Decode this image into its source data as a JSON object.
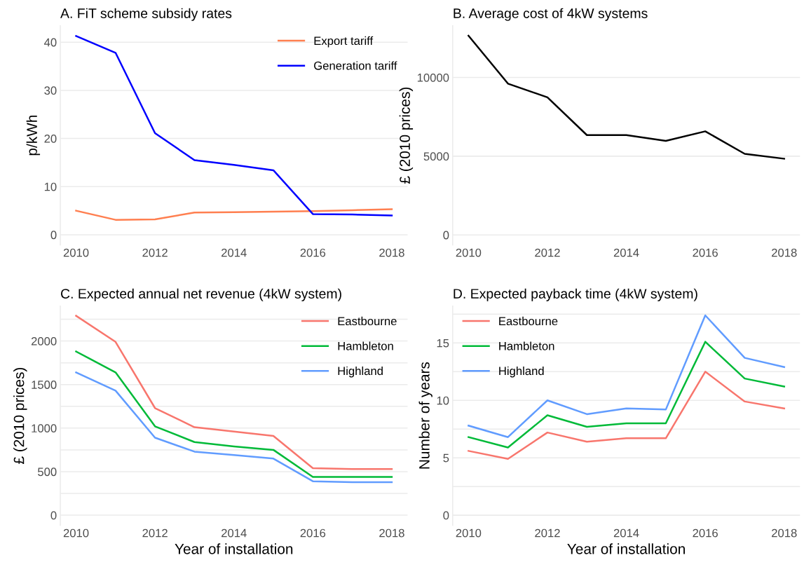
{
  "chart_data": [
    {
      "type": "line",
      "title": "A. FiT scheme subsidy rates",
      "ylabel": "p/kWh",
      "x": [
        2010,
        2011,
        2012,
        2013,
        2014,
        2015,
        2016,
        2017,
        2018
      ],
      "series": [
        {
          "name": "Export tariff",
          "color": "#ff7f50",
          "values": [
            5.0,
            3.1,
            3.2,
            4.6,
            4.7,
            4.8,
            4.9,
            5.1,
            5.3
          ]
        },
        {
          "name": "Generation tariff",
          "color": "#0000ff",
          "values": [
            41.3,
            37.8,
            21.1,
            15.5,
            14.5,
            13.4,
            4.3,
            4.2,
            4.0
          ]
        }
      ],
      "xlim": [
        2009.6,
        2018.4
      ],
      "xticks": [
        2010,
        2012,
        2014,
        2016,
        2018
      ],
      "ylim": [
        -2.1,
        43.4
      ],
      "yticks": [
        0,
        10,
        20,
        30,
        40
      ],
      "grid": "y",
      "legend": "top right"
    },
    {
      "type": "line",
      "title": "B. Average cost of 4kW systems",
      "ylabel": "£ (2010 prices)",
      "x": [
        2010,
        2011,
        2012,
        2013,
        2014,
        2015,
        2016,
        2017,
        2018
      ],
      "series": [
        {
          "color": "#000000",
          "values": [
            12650,
            9610,
            8740,
            6340,
            6340,
            5970,
            6580,
            5150,
            4840
          ]
        }
      ],
      "xlim": [
        2009.6,
        2018.4
      ],
      "xticks": [
        2010,
        2012,
        2014,
        2016,
        2018
      ],
      "ylim": [
        -630,
        13280
      ],
      "yticks": [
        0,
        5000,
        10000
      ],
      "grid": "y"
    },
    {
      "type": "line",
      "title": "C. Expected annual net revenue (4kW system)",
      "xlabel": "Year of installation",
      "ylabel": "£ (2010 prices)",
      "x": [
        2010,
        2011,
        2012,
        2013,
        2014,
        2015,
        2016,
        2017,
        2018
      ],
      "series": [
        {
          "name": "Eastbourne",
          "color": "#f8766d",
          "values": [
            2290,
            1990,
            1230,
            1010,
            960,
            910,
            540,
            530,
            530
          ]
        },
        {
          "name": "Hambleton",
          "color": "#00ba38",
          "values": [
            1880,
            1640,
            1020,
            840,
            790,
            750,
            440,
            440,
            440
          ]
        },
        {
          "name": "Highland",
          "color": "#619cff",
          "values": [
            1640,
            1430,
            890,
            730,
            690,
            650,
            390,
            380,
            380
          ]
        }
      ],
      "xlim": [
        2009.6,
        2018.4
      ],
      "xticks": [
        2010,
        2012,
        2014,
        2016,
        2018
      ],
      "ylim": [
        -115,
        2400
      ],
      "yticks": [
        0,
        {
          "value": 250,
          "label": null
        },
        500,
        {
          "value": 750,
          "label": null
        },
        1000,
        {
          "value": 1250,
          "label": null
        },
        1500,
        {
          "value": 1750,
          "label": null
        },
        2000,
        {
          "value": 2250,
          "label": null
        }
      ],
      "grid": "y",
      "legend": "top right"
    },
    {
      "type": "line",
      "title": "D. Expected payback time (4kW system)",
      "xlabel": "Year of installation",
      "ylabel": "Number of years",
      "x": [
        2010,
        2011,
        2012,
        2013,
        2014,
        2015,
        2016,
        2017,
        2018
      ],
      "series": [
        {
          "name": "Eastbourne",
          "color": "#f8766d",
          "values": [
            5.6,
            4.9,
            7.2,
            6.4,
            6.7,
            6.7,
            12.5,
            9.9,
            9.3
          ]
        },
        {
          "name": "Hambleton",
          "color": "#00ba38",
          "values": [
            6.8,
            5.9,
            8.7,
            7.7,
            8.0,
            8.0,
            15.1,
            11.9,
            11.2
          ]
        },
        {
          "name": "Highland",
          "color": "#619cff",
          "values": [
            7.8,
            6.8,
            10.0,
            8.8,
            9.3,
            9.2,
            17.4,
            13.7,
            12.9
          ]
        }
      ],
      "xlim": [
        2009.6,
        2018.4
      ],
      "xticks": [
        2010,
        2012,
        2014,
        2016,
        2018
      ],
      "ylim": [
        -0.87,
        18.2
      ],
      "yticks": [
        0,
        {
          "value": 2.5,
          "label": null
        },
        5,
        {
          "value": 7.5,
          "label": null
        },
        10,
        {
          "value": 12.5,
          "label": null
        },
        15,
        {
          "value": 17.5,
          "label": null
        }
      ],
      "grid": "y",
      "legend": "top left"
    }
  ]
}
